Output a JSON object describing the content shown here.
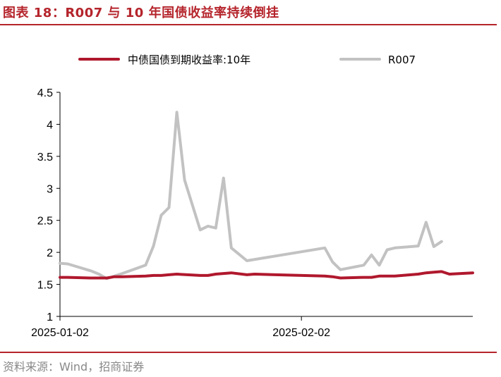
{
  "header": {
    "title": "图表 18：R007 与 10 年国债收益率持续倒挂"
  },
  "footer": {
    "source": "资料来源：Wind，招商证券"
  },
  "colors": {
    "bond": "#b0182d",
    "r007": "#c2c2c2",
    "accent": "#b5252c"
  },
  "chart_data": {
    "type": "line",
    "ylim": [
      1,
      4.5
    ],
    "yticks": [
      "1",
      "1.5",
      "2",
      "2.5",
      "3",
      "3.5",
      "4",
      "4.5"
    ],
    "xtick_labels": [
      "2025-01-02",
      "2025-02-02"
    ],
    "grid": false,
    "legend_position": "top",
    "series": [
      {
        "name": "中债国债到期收益率:10年",
        "color": "#b0182d",
        "points": [
          [
            "2025-01-02",
            1.61
          ],
          [
            "2025-01-03",
            1.61
          ],
          [
            "2025-01-06",
            1.6
          ],
          [
            "2025-01-07",
            1.6
          ],
          [
            "2025-01-08",
            1.6
          ],
          [
            "2025-01-09",
            1.62
          ],
          [
            "2025-01-10",
            1.62
          ],
          [
            "2025-01-13",
            1.63
          ],
          [
            "2025-01-14",
            1.64
          ],
          [
            "2025-01-15",
            1.64
          ],
          [
            "2025-01-16",
            1.65
          ],
          [
            "2025-01-17",
            1.66
          ],
          [
            "2025-01-20",
            1.64
          ],
          [
            "2025-01-21",
            1.64
          ],
          [
            "2025-01-22",
            1.66
          ],
          [
            "2025-01-23",
            1.67
          ],
          [
            "2025-01-24",
            1.68
          ],
          [
            "2025-01-26",
            1.65
          ],
          [
            "2025-01-27",
            1.66
          ],
          [
            "2025-02-05",
            1.63
          ],
          [
            "2025-02-06",
            1.62
          ],
          [
            "2025-02-07",
            1.6
          ],
          [
            "2025-02-10",
            1.61
          ],
          [
            "2025-02-11",
            1.61
          ],
          [
            "2025-02-12",
            1.63
          ],
          [
            "2025-02-13",
            1.63
          ],
          [
            "2025-02-14",
            1.63
          ],
          [
            "2025-02-17",
            1.66
          ],
          [
            "2025-02-18",
            1.68
          ],
          [
            "2025-02-19",
            1.69
          ],
          [
            "2025-02-20",
            1.7
          ],
          [
            "2025-02-21",
            1.66
          ],
          [
            "2025-02-24",
            1.68
          ]
        ]
      },
      {
        "name": "R007",
        "color": "#c2c2c2",
        "points": [
          [
            "2025-01-02",
            1.83
          ],
          [
            "2025-01-03",
            1.82
          ],
          [
            "2025-01-06",
            1.71
          ],
          [
            "2025-01-07",
            1.66
          ],
          [
            "2025-01-08",
            1.59
          ],
          [
            "2025-01-09",
            1.63
          ],
          [
            "2025-01-10",
            1.67
          ],
          [
            "2025-01-13",
            1.8
          ],
          [
            "2025-01-14",
            2.1
          ],
          [
            "2025-01-15",
            2.58
          ],
          [
            "2025-01-16",
            2.7
          ],
          [
            "2025-01-17",
            4.19
          ],
          [
            "2025-01-18",
            3.13
          ],
          [
            "2025-01-20",
            2.35
          ],
          [
            "2025-01-21",
            2.41
          ],
          [
            "2025-01-22",
            2.38
          ],
          [
            "2025-01-23",
            3.16
          ],
          [
            "2025-01-24",
            2.07
          ],
          [
            "2025-01-26",
            1.87
          ],
          [
            "2025-02-05",
            2.07
          ],
          [
            "2025-02-06",
            1.85
          ],
          [
            "2025-02-07",
            1.73
          ],
          [
            "2025-02-10",
            1.8
          ],
          [
            "2025-02-11",
            1.96
          ],
          [
            "2025-02-12",
            1.8
          ],
          [
            "2025-02-13",
            2.04
          ],
          [
            "2025-02-14",
            2.07
          ],
          [
            "2025-02-17",
            2.1
          ],
          [
            "2025-02-18",
            2.47
          ],
          [
            "2025-02-19",
            2.09
          ],
          [
            "2025-02-20",
            2.17
          ]
        ]
      }
    ]
  }
}
